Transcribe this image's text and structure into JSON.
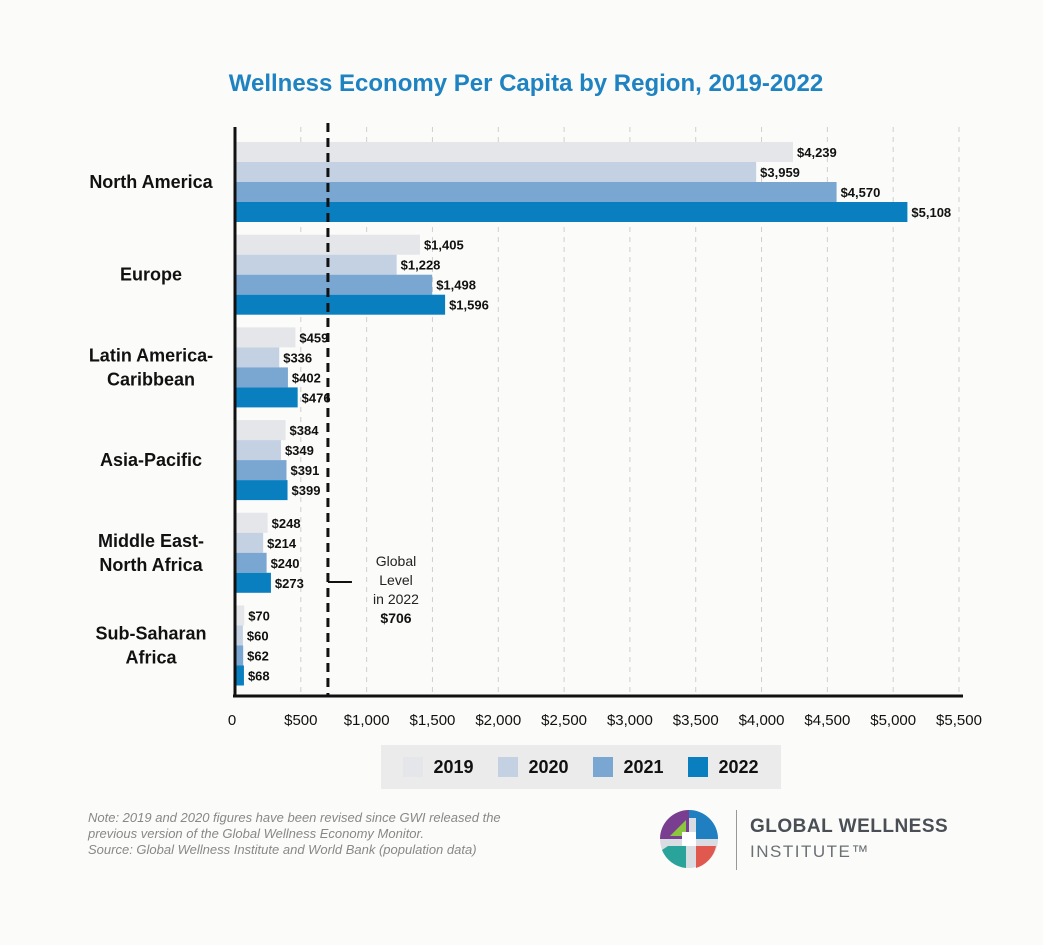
{
  "chart_data": {
    "type": "bar",
    "orientation": "horizontal",
    "title": "Wellness Economy Per Capita by Region, 2019-2022",
    "categories": [
      [
        "North America"
      ],
      [
        "Europe"
      ],
      [
        "Latin America-",
        "Caribbean"
      ],
      [
        "Asia-Pacific"
      ],
      [
        "Middle East-",
        "North Africa"
      ],
      [
        "Sub-Saharan",
        "Africa"
      ]
    ],
    "series": [
      {
        "name": "2019",
        "color": "#e4e6ea",
        "values": [
          4239,
          1405,
          459,
          384,
          248,
          70
        ],
        "labels": [
          "$4,239",
          "$1,405",
          "$459",
          "$384",
          "$248",
          "$70"
        ]
      },
      {
        "name": "2020",
        "color": "#c3d1e3",
        "values": [
          3959,
          1228,
          336,
          349,
          214,
          60
        ],
        "labels": [
          "$3,959",
          "$1,228",
          "$336",
          "$349",
          "$214",
          "$60"
        ]
      },
      {
        "name": "2021",
        "color": "#7aa6d2",
        "values": [
          4570,
          1498,
          402,
          391,
          240,
          62
        ],
        "labels": [
          "$4,570",
          "$1,498",
          "$402",
          "$391",
          "$240",
          "$62"
        ]
      },
      {
        "name": "2022",
        "color": "#0a7fc0",
        "values": [
          5108,
          1596,
          476,
          399,
          273,
          68
        ],
        "labels": [
          "$5,108",
          "$1,596",
          "$476",
          "$399",
          "$273",
          "$68"
        ]
      }
    ],
    "xlim": [
      0,
      5500
    ],
    "x_ticks": [
      0,
      500,
      1000,
      1500,
      2000,
      2500,
      3000,
      3500,
      4000,
      4500,
      5000,
      5500
    ],
    "x_tick_labels": [
      "0",
      "$500",
      "$1,000",
      "$1,500",
      "$2,000",
      "$2,500",
      "$3,000",
      "$3,500",
      "$4,000",
      "$4,500",
      "$5,000",
      "$5,500"
    ],
    "grid": "vertical dashed",
    "legend_position": "bottom",
    "reference_line": {
      "value": 706,
      "label_lines": [
        "Global",
        "Level",
        "in 2022"
      ],
      "value_label": "$706"
    }
  },
  "notes": [
    "Note: 2019 and 2020 figures have been revised since GWI released the",
    "previous version of the Global Wellness Economy Monitor.",
    "Source: Global Wellness Institute and World Bank (population data)"
  ],
  "logo": {
    "line1": "GLOBAL WELLNESS",
    "line2": "INSTITUTE™"
  }
}
